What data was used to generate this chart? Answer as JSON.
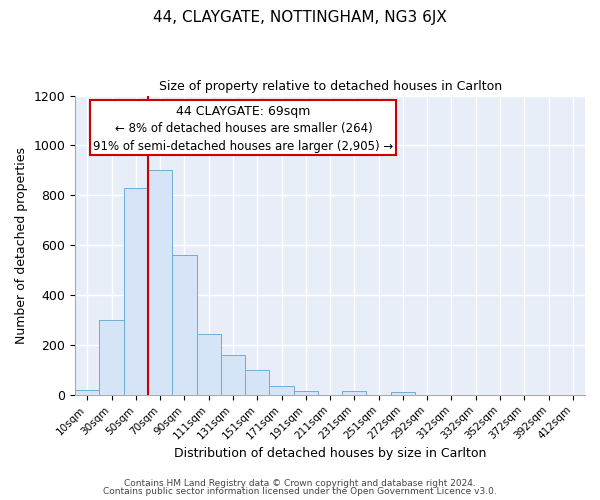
{
  "title": "44, CLAYGATE, NOTTINGHAM, NG3 6JX",
  "subtitle": "Size of property relative to detached houses in Carlton",
  "xlabel": "Distribution of detached houses by size in Carlton",
  "ylabel": "Number of detached properties",
  "bar_labels": [
    "10sqm",
    "30sqm",
    "50sqm",
    "70sqm",
    "90sqm",
    "111sqm",
    "131sqm",
    "151sqm",
    "171sqm",
    "191sqm",
    "211sqm",
    "231sqm",
    "251sqm",
    "272sqm",
    "292sqm",
    "312sqm",
    "332sqm",
    "352sqm",
    "372sqm",
    "392sqm",
    "412sqm"
  ],
  "bar_values": [
    20,
    300,
    830,
    900,
    560,
    245,
    160,
    100,
    35,
    15,
    0,
    15,
    0,
    10,
    0,
    0,
    0,
    0,
    0,
    0,
    0
  ],
  "bar_color": "#d6e4f7",
  "bar_edge_color": "#6aaed6",
  "vline_x": 3,
  "vline_color": "#cc0000",
  "ylim": [
    0,
    1200
  ],
  "yticks": [
    0,
    200,
    400,
    600,
    800,
    1000,
    1200
  ],
  "annotation_title": "44 CLAYGATE: 69sqm",
  "annotation_line1": "← 8% of detached houses are smaller (264)",
  "annotation_line2": "91% of semi-detached houses are larger (2,905) →",
  "footer1": "Contains HM Land Registry data © Crown copyright and database right 2024.",
  "footer2": "Contains public sector information licensed under the Open Government Licence v3.0.",
  "plot_bg_color": "#e8eef8",
  "fig_bg_color": "#ffffff",
  "annotation_box_color": "#ffffff",
  "annotation_box_edge": "#cc0000",
  "grid_color": "#ffffff"
}
